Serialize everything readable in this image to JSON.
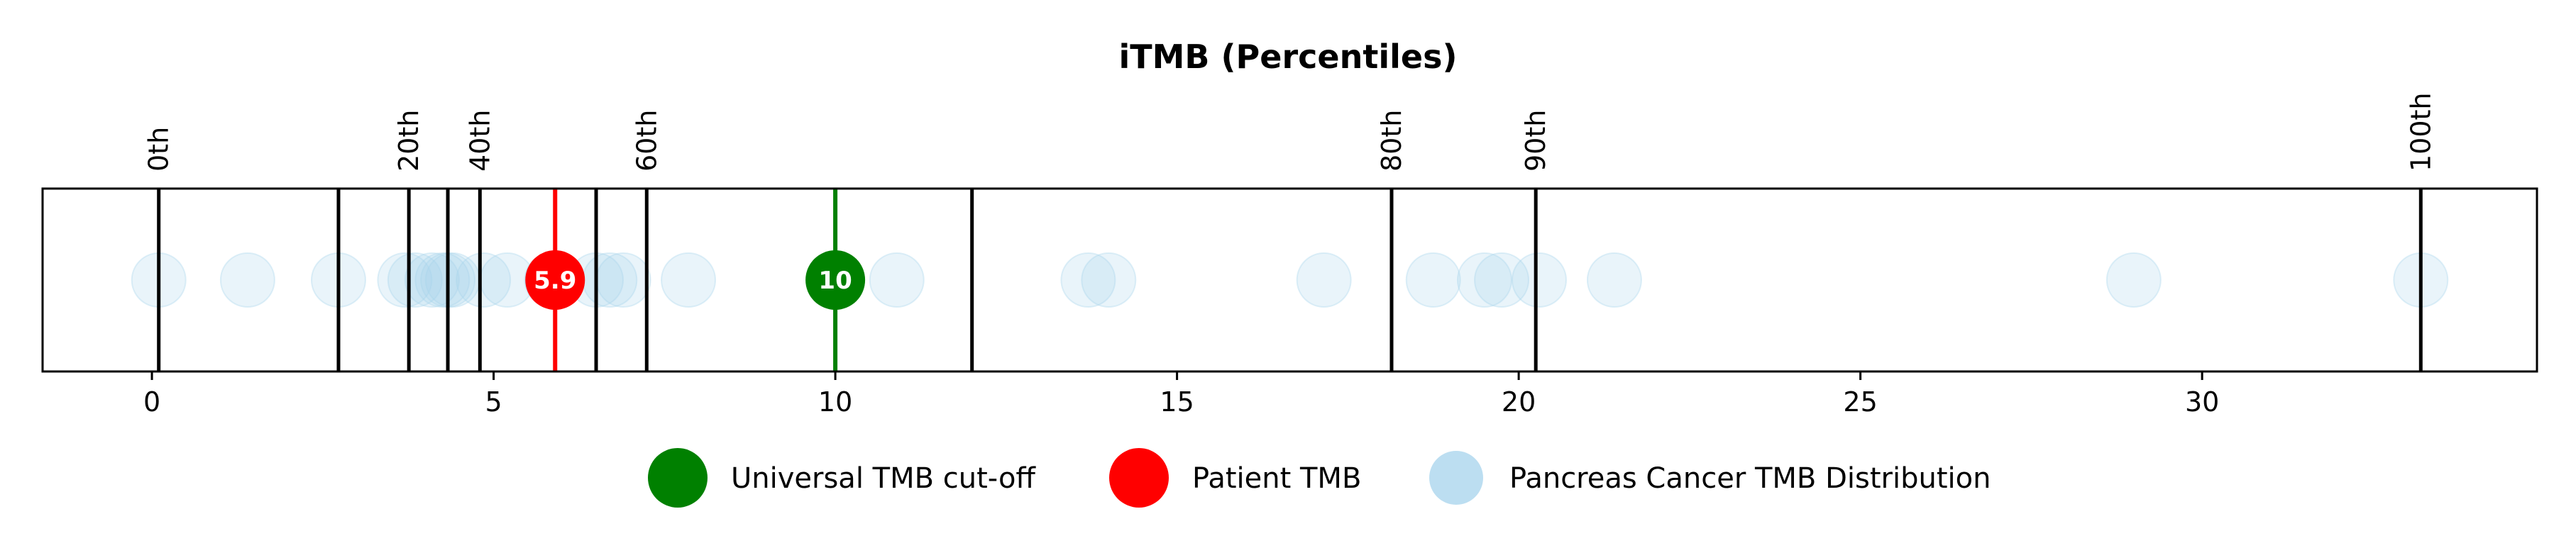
{
  "chart_data": {
    "type": "scatter",
    "title": "iTMB (Percentiles)",
    "xlim": [
      -1.6,
      34.9
    ],
    "xticks": [
      0,
      5,
      10,
      15,
      20,
      25,
      30
    ],
    "grid": false,
    "percentile_lines": [
      {
        "x": 0.1,
        "label": "0th"
      },
      {
        "x": 2.73,
        "label": ""
      },
      {
        "x": 3.76,
        "label": "20th"
      },
      {
        "x": 4.33,
        "label": ""
      },
      {
        "x": 4.8,
        "label": "40th"
      },
      {
        "x": 6.5,
        "label": ""
      },
      {
        "x": 7.24,
        "label": "60th"
      },
      {
        "x": 12.0,
        "label": ""
      },
      {
        "x": 18.14,
        "label": "80th"
      },
      {
        "x": 20.25,
        "label": "90th"
      },
      {
        "x": 33.2,
        "label": "100th"
      }
    ],
    "distribution": {
      "name": "Pancreas Cancer TMB Distribution",
      "color": "#a6d3ec",
      "x": [
        0.1,
        1.4,
        2.73,
        3.7,
        3.85,
        4.1,
        4.25,
        4.33,
        4.4,
        4.85,
        5.2,
        5.85,
        6.5,
        6.7,
        6.9,
        7.85,
        10.9,
        13.7,
        14.0,
        17.15,
        18.75,
        19.5,
        19.75,
        20.3,
        21.4,
        29.0,
        33.2
      ]
    },
    "cutoff": {
      "name": "Universal TMB cut-off",
      "value": 10,
      "label": "10",
      "color": "#008000"
    },
    "patient": {
      "name": "Patient TMB",
      "value": 5.9,
      "label": "5.9",
      "color": "#ff0000"
    },
    "legend_position": "bottom-center"
  }
}
